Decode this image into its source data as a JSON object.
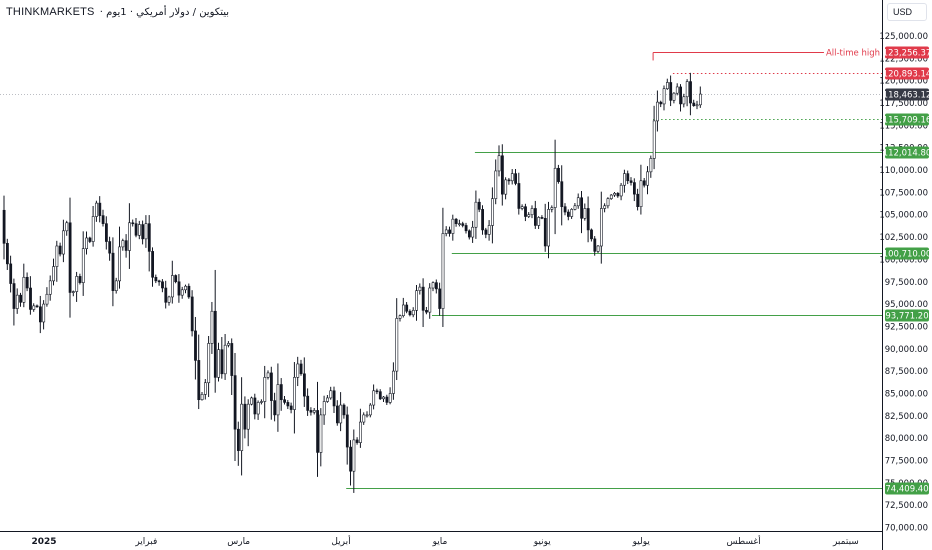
{
  "header": {
    "symbol": "THINKMARKETS",
    "description": " · بيتكوين / دولار أمريكي · 1يوم"
  },
  "currency_button": "USD",
  "chart_data": {
    "type": "candlestick",
    "y_range": [
      70000,
      125000
    ],
    "y_ticks": [
      "125,000.00",
      "122,500.00",
      "120,000.00",
      "117,500.00",
      "115,000.00",
      "112,500.00",
      "110,000.00",
      "107,500.00",
      "105,000.00",
      "102,500.00",
      "100,000.00",
      "97,500.00",
      "95,000.00",
      "92,500.00",
      "90,000.00",
      "87,500.00",
      "85,000.00",
      "82,500.00",
      "80,000.00",
      "77,500.00",
      "75,000.00",
      "72,500.00",
      "70,000.00"
    ],
    "y_tick_values": [
      125000,
      122500,
      120000,
      117500,
      115000,
      112500,
      110000,
      107500,
      105000,
      102500,
      100000,
      97500,
      95000,
      92500,
      90000,
      87500,
      85000,
      82500,
      80000,
      77500,
      75000,
      72500,
      70000
    ],
    "x_labels": [
      {
        "text": "2025",
        "day": 0,
        "bold": true
      },
      {
        "text": "فبراير",
        "day": 31
      },
      {
        "text": "مارس",
        "day": 59
      },
      {
        "text": "أبريل",
        "day": 90
      },
      {
        "text": "مايو",
        "day": 120
      },
      {
        "text": "يونيو",
        "day": 151
      },
      {
        "text": "يوليو",
        "day": 181
      },
      {
        "text": "أغسطس",
        "day": 212
      },
      {
        "text": "سبتمبر",
        "day": 243
      }
    ],
    "current_price": {
      "value": 118463.12,
      "label": "118,463.12",
      "color": "#363a45"
    },
    "levels": [
      {
        "value": 123256.37,
        "label": "123,256.37",
        "color": "#e03a4a",
        "style": "solid",
        "start_day": 197,
        "note": "All-time high"
      },
      {
        "value": 120893.14,
        "label": "120,893.14",
        "color": "#e03a4a",
        "style": "dotted",
        "start_day": 203
      },
      {
        "value": 115709.16,
        "label": "115,709.16",
        "color": "#43a047",
        "style": "dotted",
        "start_day": 197
      },
      {
        "value": 112014.8,
        "label": "112,014.80",
        "color": "#43a047",
        "style": "solid",
        "start_day": 143
      },
      {
        "value": 100710.0,
        "label": "100,710.00",
        "color": "#43a047",
        "style": "solid",
        "start_day": 136
      },
      {
        "value": 93771.2,
        "label": "93,771.20",
        "color": "#43a047",
        "style": "solid",
        "start_day": 130
      },
      {
        "value": 74409.4,
        "label": "74,409.40",
        "color": "#43a047",
        "style": "solid",
        "start_day": 104
      }
    ],
    "close_series": [
      [
        -1,
        105500
      ],
      [
        0,
        101800
      ],
      [
        1,
        99500
      ],
      [
        2,
        97300
      ],
      [
        3,
        94500
      ],
      [
        4,
        96000
      ],
      [
        5,
        95200
      ],
      [
        6,
        98000
      ],
      [
        7,
        96800
      ],
      [
        8,
        94400
      ],
      [
        9,
        94800
      ],
      [
        10,
        94700
      ],
      [
        11,
        93000
      ],
      [
        12,
        95000
      ],
      [
        13,
        96100
      ],
      [
        14,
        97600
      ],
      [
        15,
        99200
      ],
      [
        16,
        101500
      ],
      [
        17,
        100600
      ],
      [
        18,
        103200
      ],
      [
        19,
        104100
      ],
      [
        20,
        96300
      ],
      [
        21,
        96400
      ],
      [
        22,
        98100
      ],
      [
        23,
        97400
      ],
      [
        24,
        101200
      ],
      [
        25,
        102400
      ],
      [
        26,
        102000
      ],
      [
        27,
        104800
      ],
      [
        28,
        106300
      ],
      [
        29,
        104900
      ],
      [
        30,
        104000
      ],
      [
        31,
        102000
      ],
      [
        32,
        100700
      ],
      [
        33,
        96500
      ],
      [
        34,
        97600
      ],
      [
        35,
        101400
      ],
      [
        36,
        102100
      ],
      [
        37,
        101000
      ],
      [
        38,
        104100
      ],
      [
        39,
        104000
      ],
      [
        40,
        102700
      ],
      [
        41,
        103900
      ],
      [
        42,
        102300
      ],
      [
        43,
        104000
      ],
      [
        44,
        100900
      ],
      [
        45,
        98000
      ],
      [
        46,
        97600
      ],
      [
        47,
        97500
      ],
      [
        48,
        96800
      ],
      [
        49,
        95200
      ],
      [
        50,
        95800
      ],
      [
        51,
        98200
      ],
      [
        52,
        97500
      ],
      [
        53,
        96000
      ],
      [
        54,
        96600
      ],
      [
        55,
        97000
      ],
      [
        56,
        95800
      ],
      [
        57,
        92000
      ],
      [
        58,
        88700
      ],
      [
        59,
        84300
      ],
      [
        60,
        84900
      ],
      [
        61,
        86200
      ],
      [
        62,
        90600
      ],
      [
        63,
        94200
      ],
      [
        64,
        86800
      ],
      [
        65,
        89900
      ],
      [
        66,
        87200
      ],
      [
        67,
        90400
      ],
      [
        68,
        90600
      ],
      [
        69,
        87000
      ],
      [
        70,
        81000
      ],
      [
        71,
        78600
      ],
      [
        72,
        83800
      ],
      [
        73,
        81000
      ],
      [
        74,
        83800
      ],
      [
        75,
        84500
      ],
      [
        76,
        82700
      ],
      [
        77,
        84000
      ],
      [
        78,
        84100
      ],
      [
        79,
        86800
      ],
      [
        80,
        87300
      ],
      [
        81,
        84200
      ],
      [
        82,
        82600
      ],
      [
        83,
        86000
      ],
      [
        84,
        84300
      ],
      [
        85,
        84000
      ],
      [
        86,
        83600
      ],
      [
        87,
        83200
      ],
      [
        88,
        86800
      ],
      [
        89,
        88300
      ],
      [
        90,
        87200
      ],
      [
        91,
        84700
      ],
      [
        92,
        83100
      ],
      [
        93,
        82900
      ],
      [
        94,
        83100
      ],
      [
        95,
        78400
      ],
      [
        96,
        82600
      ],
      [
        97,
        84100
      ],
      [
        98,
        84500
      ],
      [
        99,
        85300
      ],
      [
        100,
        83600
      ],
      [
        101,
        81700
      ],
      [
        102,
        83700
      ],
      [
        103,
        82600
      ],
      [
        104,
        79000
      ],
      [
        105,
        76300
      ],
      [
        106,
        79800
      ],
      [
        107,
        79500
      ],
      [
        108,
        81800
      ],
      [
        109,
        82600
      ],
      [
        110,
        82600
      ],
      [
        111,
        83700
      ],
      [
        112,
        85300
      ],
      [
        113,
        85200
      ],
      [
        114,
        84400
      ],
      [
        115,
        84600
      ],
      [
        116,
        84000
      ],
      [
        117,
        85000
      ],
      [
        118,
        87500
      ],
      [
        119,
        93400
      ],
      [
        120,
        93700
      ],
      [
        121,
        94900
      ],
      [
        122,
        94200
      ],
      [
        123,
        93800
      ],
      [
        124,
        94300
      ],
      [
        125,
        96500
      ],
      [
        126,
        96900
      ],
      [
        127,
        94300
      ],
      [
        128,
        94100
      ],
      [
        129,
        96800
      ],
      [
        130,
        97400
      ],
      [
        131,
        96700
      ],
      [
        132,
        94500
      ],
      [
        133,
        102900
      ],
      [
        134,
        103300
      ],
      [
        135,
        102900
      ],
      [
        136,
        104500
      ],
      [
        137,
        104000
      ],
      [
        138,
        104000
      ],
      [
        139,
        103800
      ],
      [
        140,
        103200
      ],
      [
        141,
        102500
      ],
      [
        142,
        103600
      ],
      [
        143,
        106400
      ],
      [
        144,
        105600
      ],
      [
        145,
        103300
      ],
      [
        146,
        102800
      ],
      [
        147,
        103800
      ],
      [
        148,
        106800
      ],
      [
        149,
        109900
      ],
      [
        150,
        111600
      ],
      [
        151,
        107300
      ],
      [
        152,
        108900
      ],
      [
        153,
        108800
      ],
      [
        154,
        109600
      ],
      [
        155,
        108500
      ],
      [
        156,
        105700
      ],
      [
        157,
        105900
      ],
      [
        158,
        104800
      ],
      [
        159,
        105000
      ],
      [
        160,
        105700
      ],
      [
        161,
        103800
      ],
      [
        162,
        104700
      ],
      [
        163,
        104600
      ],
      [
        164,
        101500
      ],
      [
        165,
        105600
      ],
      [
        166,
        105800
      ],
      [
        167,
        110200
      ],
      [
        168,
        108700
      ],
      [
        169,
        105900
      ],
      [
        170,
        105300
      ],
      [
        171,
        104800
      ],
      [
        172,
        105600
      ],
      [
        173,
        106000
      ],
      [
        174,
        106900
      ],
      [
        175,
        104600
      ],
      [
        176,
        105700
      ],
      [
        177,
        103300
      ],
      [
        178,
        102300
      ],
      [
        179,
        100900
      ],
      [
        180,
        101500
      ],
      [
        181,
        105700
      ],
      [
        182,
        106000
      ],
      [
        183,
        106800
      ],
      [
        184,
        107200
      ],
      [
        185,
        107400
      ],
      [
        186,
        107100
      ],
      [
        187,
        108300
      ],
      [
        188,
        109600
      ],
      [
        189,
        108800
      ],
      [
        190,
        108600
      ],
      [
        191,
        107300
      ],
      [
        192,
        105900
      ],
      [
        193,
        108800
      ],
      [
        194,
        108300
      ],
      [
        195,
        109800
      ],
      [
        196,
        111300
      ],
      [
        197,
        115500
      ],
      [
        198,
        117600
      ],
      [
        199,
        117400
      ],
      [
        200,
        119100
      ],
      [
        201,
        119800
      ],
      [
        202,
        117800
      ],
      [
        203,
        118600
      ],
      [
        204,
        119300
      ],
      [
        205,
        117400
      ],
      [
        206,
        118200
      ],
      [
        207,
        119900
      ],
      [
        208,
        117500
      ],
      [
        209,
        117200
      ],
      [
        210,
        117300
      ],
      [
        211,
        118500
      ]
    ]
  }
}
